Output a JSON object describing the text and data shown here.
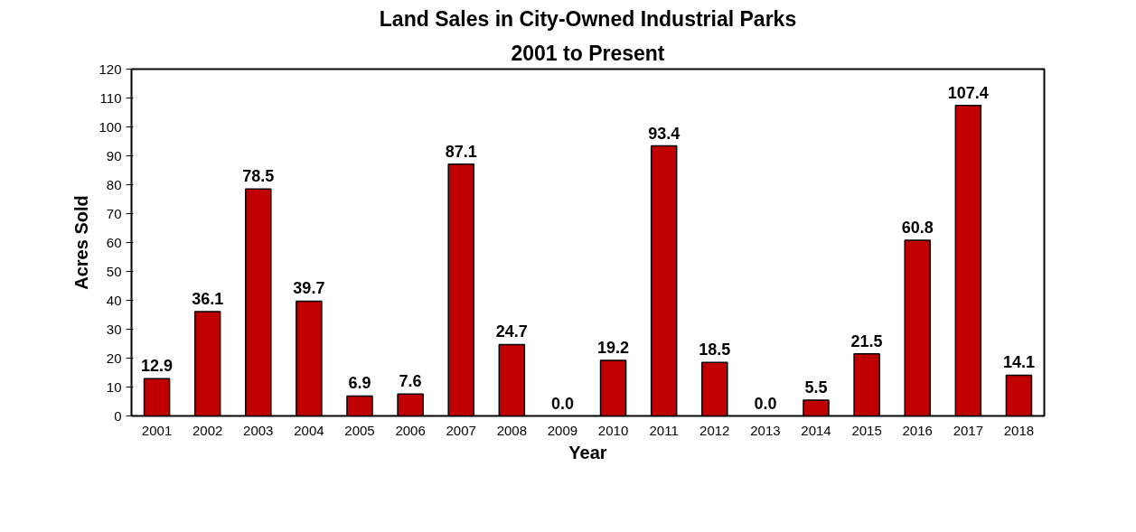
{
  "chart_data": {
    "type": "bar",
    "title": "Land Sales in City-Owned Industrial Parks",
    "subtitle": "2001 to Present",
    "xlabel": "Year",
    "ylabel": "Acres Sold",
    "categories": [
      "2001",
      "2002",
      "2003",
      "2004",
      "2005",
      "2006",
      "2007",
      "2008",
      "2009",
      "2010",
      "2011",
      "2012",
      "2013",
      "2014",
      "2015",
      "2016",
      "2017",
      "2018"
    ],
    "values": [
      12.9,
      36.1,
      78.5,
      39.7,
      6.9,
      7.6,
      87.1,
      24.7,
      0.0,
      19.2,
      93.4,
      18.5,
      0.0,
      5.5,
      21.5,
      60.8,
      107.4,
      14.1
    ],
    "value_labels": [
      "12.9",
      "36.1",
      "78.5",
      "39.7",
      "6.9",
      "7.6",
      "87.1",
      "24.7",
      "0.0",
      "19.2",
      "93.4",
      "18.5",
      "0.0",
      "5.5",
      "21.5",
      "60.8",
      "107.4",
      "14.1"
    ],
    "color": "#c00000",
    "ylim": [
      0,
      120
    ],
    "yticks": [
      0,
      10,
      20,
      30,
      40,
      50,
      60,
      70,
      80,
      90,
      100,
      110,
      120
    ],
    "grid": false
  }
}
